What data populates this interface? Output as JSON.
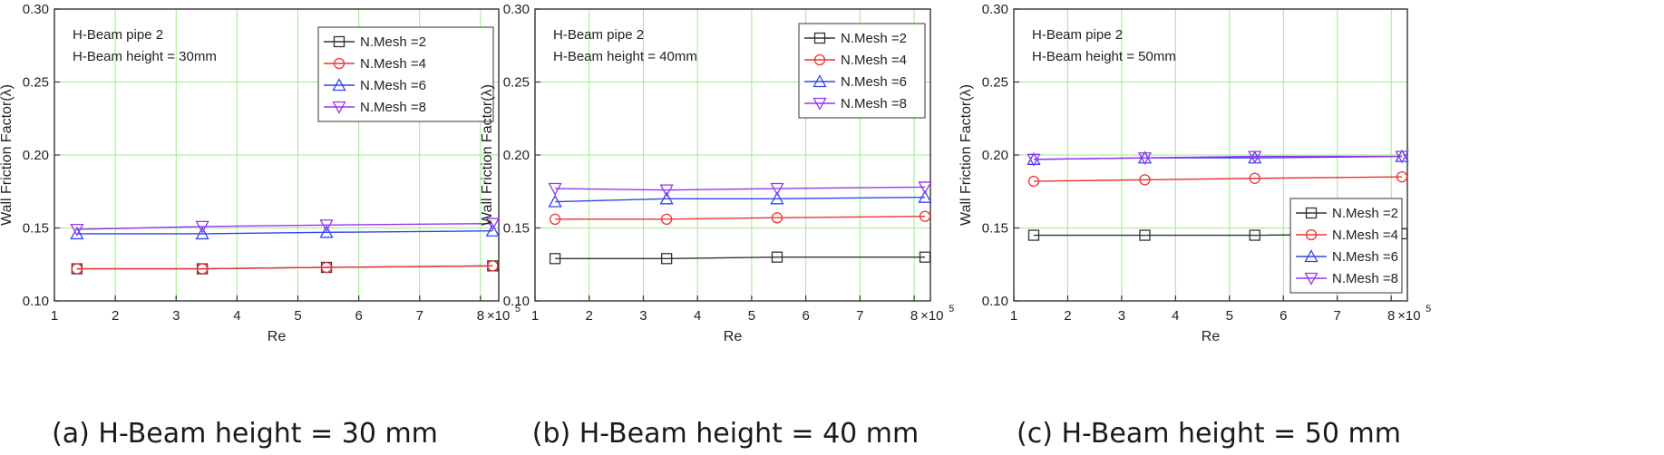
{
  "chart_data": [
    {
      "type": "line",
      "caption": "(a) H-Beam height = 30 mm",
      "annotation": [
        "H-Beam pipe 2",
        "H-Beam height = 30mm"
      ],
      "xlabel": "Re",
      "ylabel": "Wall Friction Factor(λ)",
      "x_multiplier_label": "×10",
      "x_multiplier_exp": "5",
      "xlim": [
        1,
        8.3
      ],
      "ylim": [
        0.1,
        0.3
      ],
      "x_ticks": [
        1,
        2,
        3,
        4,
        5,
        6,
        7,
        8
      ],
      "y_ticks": [
        0.1,
        0.15,
        0.2,
        0.25,
        0.3
      ],
      "y_tick_labels": [
        "0.10",
        "0.15",
        "0.20",
        "0.25",
        "0.30"
      ],
      "grid": true,
      "legend_position": "top-right",
      "x": [
        1.37,
        3.43,
        5.47,
        8.2
      ],
      "series": [
        {
          "name": "N.Mesh =2",
          "marker": "square",
          "color": "#333333",
          "values": [
            0.122,
            0.122,
            0.123,
            0.124
          ]
        },
        {
          "name": "N.Mesh =4",
          "marker": "circle",
          "color": "#ee3333",
          "values": [
            0.122,
            0.122,
            0.123,
            0.124
          ]
        },
        {
          "name": "N.Mesh =6",
          "marker": "triangle-up",
          "color": "#3344ee",
          "values": [
            0.146,
            0.146,
            0.147,
            0.148
          ]
        },
        {
          "name": "N.Mesh =8",
          "marker": "triangle-down",
          "color": "#9933ee",
          "values": [
            0.149,
            0.151,
            0.152,
            0.153
          ]
        }
      ]
    },
    {
      "type": "line",
      "caption": "(b) H-Beam height = 40 mm",
      "annotation": [
        "H-Beam pipe 2",
        "H-Beam height = 40mm"
      ],
      "xlabel": "Re",
      "ylabel": "Wall Friction Factor(λ)",
      "x_multiplier_label": "×10",
      "x_multiplier_exp": "5",
      "xlim": [
        1,
        8.3
      ],
      "ylim": [
        0.1,
        0.3
      ],
      "x_ticks": [
        1,
        2,
        3,
        4,
        5,
        6,
        7,
        8
      ],
      "y_ticks": [
        0.1,
        0.15,
        0.2,
        0.25,
        0.3
      ],
      "y_tick_labels": [
        "0.10",
        "0.15",
        "0.20",
        "0.25",
        "0.30"
      ],
      "grid": true,
      "legend_position": "top-right",
      "x": [
        1.37,
        3.43,
        5.47,
        8.2
      ],
      "series": [
        {
          "name": "N.Mesh =2",
          "marker": "square",
          "color": "#333333",
          "values": [
            0.129,
            0.129,
            0.13,
            0.13
          ]
        },
        {
          "name": "N.Mesh =4",
          "marker": "circle",
          "color": "#ee3333",
          "values": [
            0.156,
            0.156,
            0.157,
            0.158
          ]
        },
        {
          "name": "N.Mesh =6",
          "marker": "triangle-up",
          "color": "#3344ee",
          "values": [
            0.168,
            0.17,
            0.17,
            0.171
          ]
        },
        {
          "name": "N.Mesh =8",
          "marker": "triangle-down",
          "color": "#9933ee",
          "values": [
            0.177,
            0.176,
            0.177,
            0.178
          ]
        }
      ]
    },
    {
      "type": "line",
      "caption": "(c) H-Beam height = 50 mm",
      "annotation": [
        "H-Beam pipe 2",
        "H-Beam height = 50mm"
      ],
      "xlabel": "Re",
      "ylabel": "Wall Friction Factor(λ)",
      "x_multiplier_label": "×10",
      "x_multiplier_exp": "5",
      "xlim": [
        1,
        8.3
      ],
      "ylim": [
        0.1,
        0.3
      ],
      "x_ticks": [
        1,
        2,
        3,
        4,
        5,
        6,
        7,
        8
      ],
      "y_ticks": [
        0.1,
        0.15,
        0.2,
        0.25,
        0.3
      ],
      "y_tick_labels": [
        "0.10",
        "0.15",
        "0.20",
        "0.25",
        "0.30"
      ],
      "grid": true,
      "legend_position": "bottom-right",
      "x": [
        1.37,
        3.43,
        5.47,
        8.2
      ],
      "series": [
        {
          "name": "N.Mesh =2",
          "marker": "square",
          "color": "#333333",
          "values": [
            0.145,
            0.145,
            0.145,
            0.146
          ]
        },
        {
          "name": "N.Mesh =4",
          "marker": "circle",
          "color": "#ee3333",
          "values": [
            0.182,
            0.183,
            0.184,
            0.185
          ]
        },
        {
          "name": "N.Mesh =6",
          "marker": "triangle-up",
          "color": "#3344ee",
          "values": [
            0.197,
            0.198,
            0.198,
            0.199
          ]
        },
        {
          "name": "N.Mesh =8",
          "marker": "triangle-down",
          "color": "#9933ee",
          "values": [
            0.197,
            0.198,
            0.199,
            0.199
          ]
        }
      ]
    }
  ]
}
